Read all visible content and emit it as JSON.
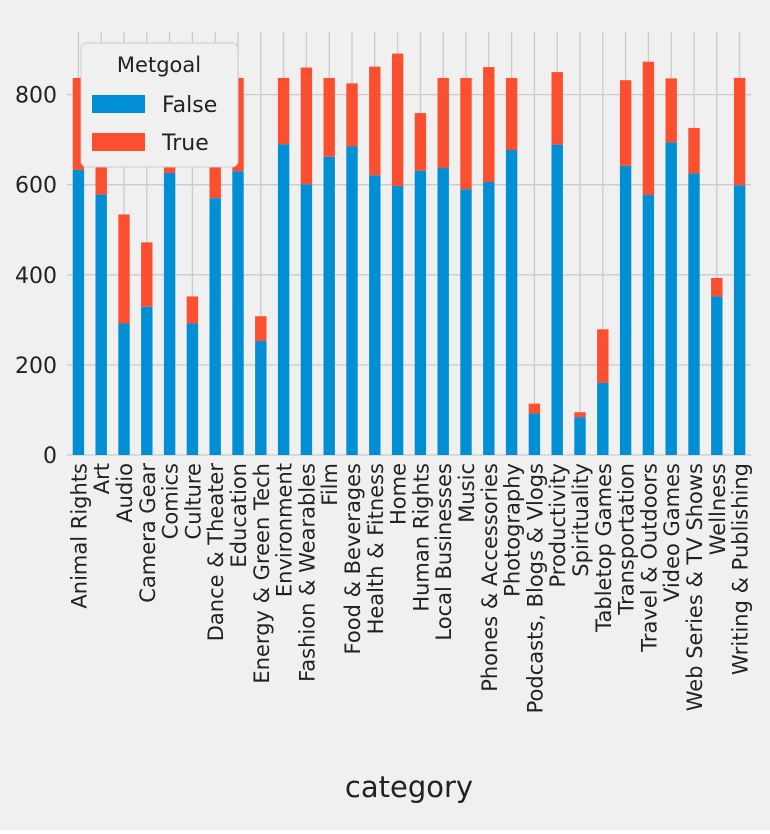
{
  "chart_data": {
    "type": "bar",
    "stacked": true,
    "xlabel": "category",
    "ylabel": "",
    "ylim": [
      0,
      930
    ],
    "yticks": [
      0,
      200,
      400,
      600,
      800
    ],
    "grid": true,
    "legend": {
      "title": "Metgoal",
      "placement": "top-left"
    },
    "categories": [
      "Animal Rights",
      "Art",
      "Audio",
      "Camera Gear",
      "Comics",
      "Culture",
      "Dance & Theater",
      "Education",
      "Energy & Green Tech",
      "Environment",
      "Fashion & Wearables",
      "Film",
      "Food & Beverages",
      "Health & Fitness",
      "Home",
      "Human Rights",
      "Local Businesses",
      "Music",
      "Phones & Accessories",
      "Photography",
      "Podcasts, Blogs & Vlogs",
      "Productivity",
      "Spirituality",
      "Tabletop Games",
      "Transportation",
      "Travel & Outdoors",
      "Video Games",
      "Web Series & TV Shows",
      "Wellness",
      "Writing & Publishing"
    ],
    "series": [
      {
        "name": "False",
        "color": "#008fd5",
        "values": [
          633,
          578,
          292,
          329,
          626,
          292,
          570,
          630,
          253,
          690,
          601,
          662,
          685,
          621,
          597,
          631,
          637,
          590,
          606,
          677,
          92,
          689,
          84,
          160,
          642,
          577,
          694,
          625,
          352,
          599
        ]
      },
      {
        "name": "True",
        "color": "#fc4f30",
        "values": [
          204,
          259,
          242,
          143,
          215,
          60,
          267,
          207,
          55,
          147,
          259,
          175,
          140,
          241,
          294,
          128,
          200,
          247,
          255,
          160,
          22,
          161,
          11,
          119,
          190,
          296,
          142,
          101,
          41,
          238
        ]
      }
    ]
  }
}
